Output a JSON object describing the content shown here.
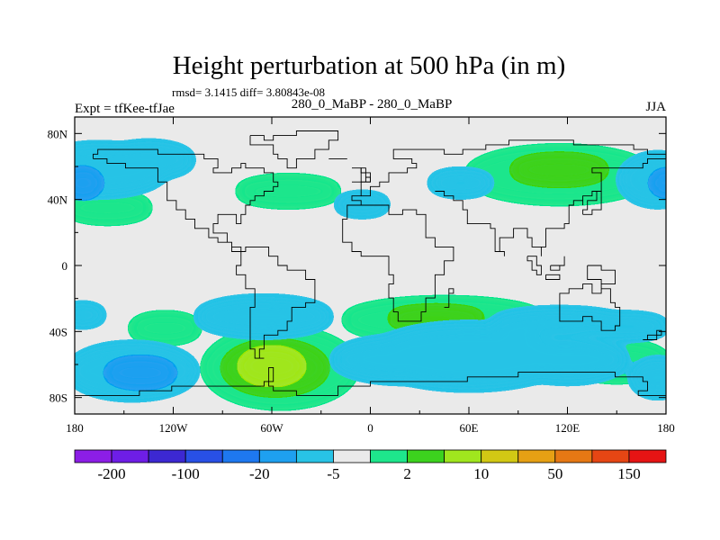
{
  "chart_data": {
    "type": "heatmap",
    "title": "Height perturbation at 500 hPa (in m)",
    "stats_text": "rmsd= 3.1415  diff= 3.80843e-08",
    "left_string": "Expt = tfKee-tfJae",
    "center_string": "280_0_MaBP - 280_0_MaBP",
    "right_string": "JJA",
    "x_ticks": [
      {
        "value": -180,
        "label": "180"
      },
      {
        "value": -120,
        "label": "120W"
      },
      {
        "value": -60,
        "label": "60W"
      },
      {
        "value": 0,
        "label": "0"
      },
      {
        "value": 60,
        "label": "60E"
      },
      {
        "value": 120,
        "label": "120E"
      },
      {
        "value": 180,
        "label": "180"
      }
    ],
    "y_ticks": [
      {
        "value": 80,
        "label": "80N"
      },
      {
        "value": 40,
        "label": "40N"
      },
      {
        "value": 0,
        "label": "0"
      },
      {
        "value": -40,
        "label": "40S"
      },
      {
        "value": -80,
        "label": "80S"
      }
    ],
    "xlim": [
      -180,
      180
    ],
    "ylim": [
      -90,
      90
    ],
    "colorbar": {
      "colors": [
        "#8c1ee6",
        "#6e1ee6",
        "#3c28d2",
        "#2850e6",
        "#1e78f0",
        "#1ea0f0",
        "#28c3e6",
        "#eaeaea",
        "#1ee68c",
        "#3cd21e",
        "#a0e61e",
        "#d2c814",
        "#e6a014",
        "#e67814",
        "#e64614",
        "#e61414"
      ],
      "labels": [
        {
          "after_box": 1,
          "text": "-200"
        },
        {
          "after_box": 3,
          "text": "-100"
        },
        {
          "after_box": 5,
          "text": "-20"
        },
        {
          "after_box": 7,
          "text": "-5"
        },
        {
          "after_box": 9,
          "text": "2"
        },
        {
          "after_box": 11,
          "text": "10"
        },
        {
          "after_box": 13,
          "text": "50"
        },
        {
          "after_box": 15,
          "text": "150"
        }
      ]
    },
    "field_colors": {
      "c_n20": "#1e78f0",
      "c_n10": "#1ea0f0",
      "c_n5": "#28c3e6",
      "c_0": "#eaeaea",
      "c_2": "#1ee68c",
      "c_5": "#3cd21e",
      "c_10": "#a0e61e",
      "coast": "#000000"
    },
    "anomalies": [
      {
        "lon": -165,
        "lat": 58,
        "rx": 40,
        "ry": 14,
        "value": -8
      },
      {
        "lon": -175,
        "lat": 50,
        "rx": 10,
        "ry": 7,
        "value": -18
      },
      {
        "lon": -135,
        "lat": 64,
        "rx": 26,
        "ry": 9,
        "value": -6
      },
      {
        "lon": -160,
        "lat": 35,
        "rx": 25,
        "ry": 7,
        "value": 3
      },
      {
        "lon": -50,
        "lat": 45,
        "rx": 30,
        "ry": 7,
        "value": 3
      },
      {
        "lon": -5,
        "lat": 37,
        "rx": 15,
        "ry": 5,
        "value": -6
      },
      {
        "lon": 55,
        "lat": 50,
        "rx": 18,
        "ry": 6,
        "value": -7
      },
      {
        "lon": 115,
        "lat": 55,
        "rx": 55,
        "ry": 15,
        "value": 3
      },
      {
        "lon": 115,
        "lat": 58,
        "rx": 28,
        "ry": 7,
        "value": 6
      },
      {
        "lon": 175,
        "lat": 52,
        "rx": 22,
        "ry": 14,
        "value": -8
      },
      {
        "lon": 180,
        "lat": 50,
        "rx": 8,
        "ry": 6,
        "value": -18
      },
      {
        "lon": -175,
        "lat": -30,
        "rx": 12,
        "ry": 5,
        "value": -6
      },
      {
        "lon": -125,
        "lat": -38,
        "rx": 20,
        "ry": 7,
        "value": 3
      },
      {
        "lon": -65,
        "lat": -31,
        "rx": 40,
        "ry": 10,
        "value": -6
      },
      {
        "lon": 45,
        "lat": -33,
        "rx": 60,
        "ry": 11,
        "value": 3
      },
      {
        "lon": 40,
        "lat": -32,
        "rx": 28,
        "ry": 5,
        "value": 6
      },
      {
        "lon": 115,
        "lat": -35,
        "rx": 40,
        "ry": 7,
        "value": -6
      },
      {
        "lon": 155,
        "lat": -37,
        "rx": 25,
        "ry": 6,
        "value": -7
      },
      {
        "lon": -145,
        "lat": -64,
        "rx": 38,
        "ry": 15,
        "value": -8
      },
      {
        "lon": -140,
        "lat": -65,
        "rx": 20,
        "ry": 7,
        "value": -18
      },
      {
        "lon": -55,
        "lat": -62,
        "rx": 45,
        "ry": 22,
        "value": 3
      },
      {
        "lon": -58,
        "lat": -62,
        "rx": 30,
        "ry": 14,
        "value": 6
      },
      {
        "lon": -60,
        "lat": -61,
        "rx": 18,
        "ry": 9,
        "value": 12
      },
      {
        "lon": 20,
        "lat": -57,
        "rx": 42,
        "ry": 12,
        "value": -7
      },
      {
        "lon": 60,
        "lat": -55,
        "rx": 60,
        "ry": 18,
        "value": -8
      },
      {
        "lon": 120,
        "lat": -57,
        "rx": 35,
        "ry": 12,
        "value": -6
      },
      {
        "lon": 150,
        "lat": -58,
        "rx": 30,
        "ry": 10,
        "value": 3
      },
      {
        "lon": 175,
        "lat": -68,
        "rx": 15,
        "ry": 10,
        "value": -8
      }
    ],
    "coastlines": [
      [
        [
          -12,
          58
        ],
        [
          -5,
          56
        ],
        [
          0,
          50
        ],
        [
          -5,
          43
        ],
        [
          -10,
          38
        ],
        [
          -5,
          36
        ],
        [
          -15,
          28
        ],
        [
          -17,
          15
        ],
        [
          -12,
          8
        ],
        [
          -5,
          5
        ],
        [
          5,
          5
        ],
        [
          10,
          4
        ],
        [
          10,
          -5
        ],
        [
          13,
          -12
        ],
        [
          12,
          -20
        ],
        [
          15,
          -28
        ],
        [
          18,
          -33
        ],
        [
          25,
          -34
        ],
        [
          32,
          -28
        ],
        [
          35,
          -20
        ],
        [
          40,
          -12
        ],
        [
          40,
          -5
        ],
        [
          45,
          3
        ],
        [
          50,
          10
        ],
        [
          43,
          12
        ],
        [
          40,
          18
        ],
        [
          35,
          28
        ],
        [
          33,
          31
        ],
        [
          28,
          33
        ],
        [
          20,
          32
        ],
        [
          10,
          37
        ],
        [
          3,
          37
        ],
        [
          -5,
          36
        ]
      ],
      [
        [
          -5,
          43
        ],
        [
          0,
          48
        ],
        [
          5,
          52
        ],
        [
          10,
          55
        ],
        [
          15,
          55
        ],
        [
          22,
          58
        ],
        [
          28,
          62
        ],
        [
          25,
          66
        ],
        [
          15,
          70
        ],
        [
          22,
          71
        ],
        [
          35,
          70
        ],
        [
          45,
          68
        ],
        [
          55,
          70
        ],
        [
          70,
          72
        ],
        [
          85,
          75
        ],
        [
          100,
          77
        ],
        [
          110,
          76
        ],
        [
          125,
          73
        ],
        [
          140,
          72
        ],
        [
          160,
          70
        ],
        [
          170,
          68
        ],
        [
          180,
          66
        ]
      ],
      [
        [
          40,
          45
        ],
        [
          45,
          42
        ],
        [
          52,
          40
        ],
        [
          55,
          35
        ],
        [
          60,
          25
        ],
        [
          66,
          25
        ],
        [
          72,
          22
        ],
        [
          76,
          8
        ],
        [
          80,
          12
        ],
        [
          80,
          18
        ],
        [
          88,
          22
        ],
        [
          92,
          22
        ],
        [
          95,
          17
        ],
        [
          98,
          10
        ],
        [
          103,
          5
        ],
        [
          105,
          10
        ],
        [
          108,
          14
        ],
        [
          108,
          22
        ],
        [
          112,
          22
        ],
        [
          118,
          24
        ],
        [
          122,
          30
        ],
        [
          121,
          36
        ],
        [
          125,
          40
        ],
        [
          128,
          36
        ],
        [
          130,
          42
        ],
        [
          135,
          45
        ],
        [
          140,
          50
        ],
        [
          140,
          55
        ],
        [
          135,
          58
        ],
        [
          142,
          60
        ],
        [
          150,
          60
        ],
        [
          155,
          58
        ],
        [
          160,
          60
        ],
        [
          165,
          62
        ],
        [
          170,
          65
        ],
        [
          180,
          66
        ]
      ],
      [
        [
          -168,
          65
        ],
        [
          -160,
          62
        ],
        [
          -150,
          60
        ],
        [
          -140,
          60
        ],
        [
          -135,
          58
        ],
        [
          -128,
          52
        ],
        [
          -124,
          46
        ],
        [
          -124,
          40
        ],
        [
          -118,
          34
        ],
        [
          -112,
          28
        ],
        [
          -106,
          23
        ],
        [
          -98,
          18
        ],
        [
          -92,
          15
        ],
        [
          -87,
          14
        ],
        [
          -84,
          10
        ],
        [
          -80,
          8
        ],
        [
          -78,
          8
        ],
        [
          -80,
          0
        ],
        [
          -81,
          -5
        ],
        [
          -76,
          -14
        ],
        [
          -71,
          -18
        ],
        [
          -70,
          -25
        ],
        [
          -72,
          -35
        ],
        [
          -73,
          -42
        ],
        [
          -74,
          -50
        ],
        [
          -70,
          -55
        ],
        [
          -66,
          -55
        ],
        [
          -68,
          -50
        ],
        [
          -65,
          -42
        ],
        [
          -57,
          -38
        ],
        [
          -52,
          -33
        ],
        [
          -48,
          -26
        ],
        [
          -40,
          -22
        ],
        [
          -35,
          -8
        ],
        [
          -40,
          -3
        ],
        [
          -50,
          0
        ],
        [
          -55,
          5
        ],
        [
          -62,
          10
        ],
        [
          -72,
          12
        ],
        [
          -77,
          9
        ],
        [
          -83,
          15
        ],
        [
          -88,
          16
        ],
        [
          -88,
          21
        ],
        [
          -90,
          21
        ],
        [
          -95,
          19
        ],
        [
          -97,
          25
        ],
        [
          -93,
          30
        ],
        [
          -84,
          30
        ],
        [
          -82,
          26
        ],
        [
          -80,
          31
        ],
        [
          -76,
          36
        ],
        [
          -74,
          40
        ],
        [
          -70,
          42
        ],
        [
          -66,
          45
        ],
        [
          -60,
          47
        ],
        [
          -56,
          52
        ],
        [
          -60,
          55
        ],
        [
          -65,
          60
        ],
        [
          -75,
          62
        ],
        [
          -80,
          58
        ],
        [
          -85,
          55
        ],
        [
          -95,
          60
        ],
        [
          -92,
          65
        ],
        [
          -100,
          68
        ],
        [
          -115,
          68
        ],
        [
          -130,
          70
        ],
        [
          -145,
          70
        ],
        [
          -156,
          71
        ],
        [
          -166,
          68
        ],
        [
          -168,
          65
        ]
      ],
      [
        [
          -72,
          78
        ],
        [
          -65,
          76
        ],
        [
          -60,
          80
        ],
        [
          -45,
          82
        ],
        [
          -30,
          82
        ],
        [
          -20,
          80
        ],
        [
          -20,
          75
        ],
        [
          -25,
          70
        ],
        [
          -35,
          66
        ],
        [
          -45,
          60
        ],
        [
          -50,
          64
        ],
        [
          -55,
          68
        ],
        [
          -60,
          72
        ],
        [
          -72,
          78
        ]
      ],
      [
        [
          114,
          -22
        ],
        [
          114,
          -26
        ],
        [
          115,
          -34
        ],
        [
          118,
          -35
        ],
        [
          123,
          -34
        ],
        [
          130,
          -31
        ],
        [
          135,
          -34
        ],
        [
          138,
          -35
        ],
        [
          140,
          -38
        ],
        [
          145,
          -39
        ],
        [
          150,
          -37
        ],
        [
          153,
          -31
        ],
        [
          153,
          -25
        ],
        [
          150,
          -22
        ],
        [
          146,
          -18
        ],
        [
          145,
          -15
        ],
        [
          142,
          -11
        ],
        [
          140,
          -17
        ],
        [
          136,
          -12
        ],
        [
          132,
          -11
        ],
        [
          129,
          -15
        ],
        [
          125,
          -14
        ],
        [
          122,
          -18
        ],
        [
          114,
          -22
        ]
      ],
      [
        [
          95,
          5
        ],
        [
          100,
          0
        ],
        [
          105,
          -6
        ],
        [
          102,
          -4
        ],
        [
          98,
          2
        ],
        [
          95,
          5
        ]
      ],
      [
        [
          106,
          -6
        ],
        [
          114,
          -8
        ],
        [
          106,
          -7
        ],
        [
          106,
          -6
        ]
      ],
      [
        [
          110,
          1
        ],
        [
          118,
          7
        ],
        [
          119,
          1
        ],
        [
          116,
          -3
        ],
        [
          110,
          -2
        ],
        [
          110,
          1
        ]
      ],
      [
        [
          131,
          -1
        ],
        [
          141,
          -3
        ],
        [
          150,
          -10
        ],
        [
          141,
          -9
        ],
        [
          131,
          -1
        ]
      ],
      [
        [
          166,
          -46
        ],
        [
          173,
          -41
        ],
        [
          178,
          -38
        ],
        [
          175,
          -42
        ],
        [
          170,
          -46
        ],
        [
          166,
          -46
        ]
      ],
      [
        [
          44,
          -25
        ],
        [
          48,
          -14
        ],
        [
          50,
          -16
        ],
        [
          47,
          -24
        ],
        [
          44,
          -25
        ]
      ],
      [
        [
          130,
          31
        ],
        [
          135,
          34
        ],
        [
          140,
          36
        ],
        [
          142,
          40
        ],
        [
          141,
          44
        ],
        [
          139,
          38
        ],
        [
          133,
          34
        ],
        [
          130,
          31
        ]
      ],
      [
        [
          80,
          8
        ],
        [
          81,
          6
        ],
        [
          82,
          8
        ],
        [
          80,
          8
        ]
      ],
      [
        [
          -180,
          -78
        ],
        [
          -160,
          -79
        ],
        [
          -140,
          -77
        ],
        [
          -120,
          -74
        ],
        [
          -100,
          -73
        ],
        [
          -80,
          -73
        ],
        [
          -65,
          -70
        ],
        [
          -60,
          -64
        ],
        [
          -58,
          -63
        ],
        [
          -62,
          -66
        ],
        [
          -62,
          -72
        ],
        [
          -60,
          -75
        ],
        [
          -45,
          -78
        ],
        [
          -30,
          -78
        ],
        [
          -20,
          -73
        ],
        [
          0,
          -70
        ],
        [
          20,
          -70
        ],
        [
          40,
          -69
        ],
        [
          60,
          -67
        ],
        [
          80,
          -67
        ],
        [
          90,
          -66
        ],
        [
          110,
          -66
        ],
        [
          130,
          -66
        ],
        [
          150,
          -68
        ],
        [
          165,
          -71
        ],
        [
          170,
          -77
        ],
        [
          162,
          -78
        ],
        [
          170,
          -79
        ],
        [
          180,
          -79
        ]
      ],
      [
        [
          -10,
          52
        ],
        [
          -6,
          55
        ],
        [
          -6,
          52
        ],
        [
          -10,
          52
        ]
      ],
      [
        [
          -5,
          50
        ],
        [
          -3,
          58
        ],
        [
          -5,
          59
        ],
        [
          -6,
          56
        ],
        [
          -3,
          55
        ],
        [
          -3,
          53
        ],
        [
          1,
          52
        ],
        [
          1,
          51
        ],
        [
          -5,
          50
        ]
      ],
      [
        [
          -24,
          64
        ],
        [
          -22,
          66
        ],
        [
          -14,
          66
        ],
        [
          -13,
          64
        ],
        [
          -24,
          64
        ]
      ]
    ]
  }
}
